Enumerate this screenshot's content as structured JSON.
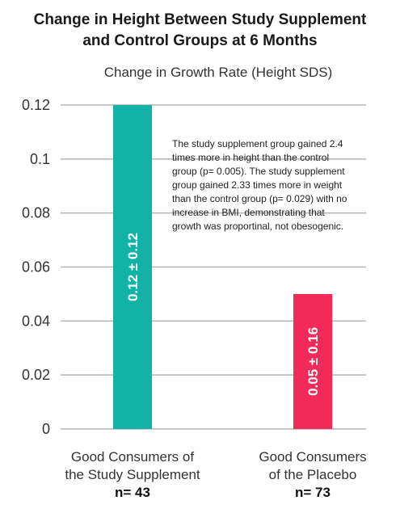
{
  "title_line1": "Change in Height Between Study Supplement",
  "title_line2": "and Control Groups at 6 Months",
  "chart_data": {
    "type": "bar",
    "title": "Change in Height Between Study Supplement and Control Groups at 6 Months",
    "ylabel": "Change in Growth Rate (Height SDS)",
    "categories": [
      "Good Consumers of the Study Supplement",
      "Good Consumers of the Placebo"
    ],
    "values": [
      0.12,
      0.05
    ],
    "bar_labels": [
      "0.12 ± 0.12",
      "0.05 ± 0.16"
    ],
    "colors": [
      "#13b2a6",
      "#f22a5a"
    ],
    "ylim": [
      0,
      0.12
    ],
    "yticks": [
      0,
      0.02,
      0.04,
      0.06,
      0.08,
      0.1,
      0.12
    ],
    "ytick_labels": [
      "0",
      "0.02",
      "0.04",
      "0.06",
      "0.08",
      "0.1",
      "0.12"
    ],
    "grid": true,
    "annotation": "The study supplement group gained 2.4 times more in height than the control group (p= 0.005). The study supplement group gained 2.33 times more in weight than the control group (p= 0.029) with no increase in BMI, demonstrating that growth was proportinal, not obesogenic."
  },
  "categories_display": [
    {
      "line1": "Good Consumers of",
      "line2": "the Study Supplement",
      "n": "n= 43"
    },
    {
      "line1": "Good Consumers",
      "line2": "of the Placebo",
      "n": "n= 73"
    }
  ]
}
